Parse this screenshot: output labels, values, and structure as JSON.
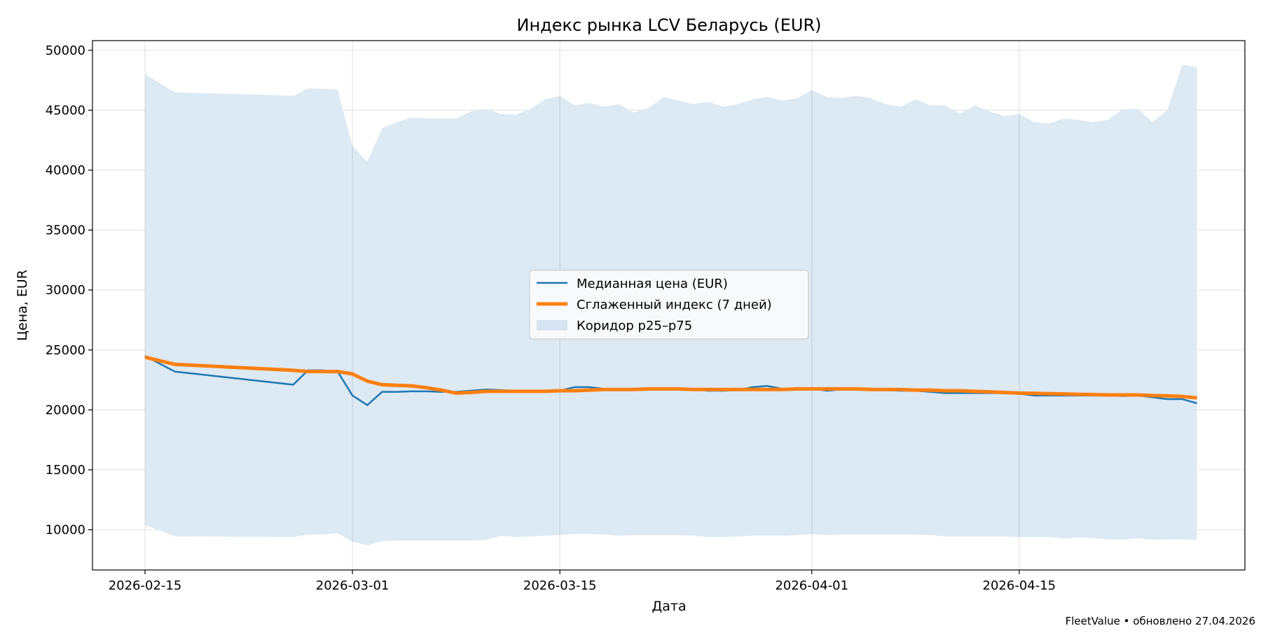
{
  "chart_data": {
    "type": "line",
    "title": "Индекс рынка LCV Беларусь (EUR)",
    "xlabel": "Дата",
    "ylabel": "Цена, EUR",
    "ylim": [
      6644,
      50805
    ],
    "xlim": [
      "2026-02-11",
      "2026-04-30"
    ],
    "grid": true,
    "legend_placement": "center",
    "x_ticks": [
      "2026-02-15",
      "2026-03-01",
      "2026-03-15",
      "2026-04-01",
      "2026-04-15"
    ],
    "y_ticks": [
      10000,
      15000,
      20000,
      25000,
      30000,
      35000,
      40000,
      45000,
      50000
    ],
    "legend": [
      "Медианная цена (EUR)",
      "Сглаженный индекс (7 дней)",
      "Коридор p25–p75"
    ],
    "colors": {
      "median": "#1f77b4",
      "smoothed": "#ff7f0e",
      "band": "#dde9f3"
    },
    "x": [
      "2026-02-15",
      "2026-02-17",
      "2026-02-25",
      "2026-02-26",
      "2026-02-27",
      "2026-02-28",
      "2026-03-01",
      "2026-03-02",
      "2026-03-03",
      "2026-03-04",
      "2026-03-05",
      "2026-03-06",
      "2026-03-07",
      "2026-03-08",
      "2026-03-09",
      "2026-03-10",
      "2026-03-11",
      "2026-03-12",
      "2026-03-13",
      "2026-03-14",
      "2026-03-15",
      "2026-03-16",
      "2026-03-17",
      "2026-03-18",
      "2026-03-19",
      "2026-03-20",
      "2026-03-21",
      "2026-03-22",
      "2026-03-23",
      "2026-03-24",
      "2026-03-25",
      "2026-03-26",
      "2026-03-27",
      "2026-03-28",
      "2026-03-29",
      "2026-03-30",
      "2026-03-31",
      "2026-04-01",
      "2026-04-02",
      "2026-04-03",
      "2026-04-04",
      "2026-04-05",
      "2026-04-06",
      "2026-04-07",
      "2026-04-08",
      "2026-04-09",
      "2026-04-10",
      "2026-04-11",
      "2026-04-12",
      "2026-04-13",
      "2026-04-14",
      "2026-04-15",
      "2026-04-16",
      "2026-04-17",
      "2026-04-18",
      "2026-04-19",
      "2026-04-20",
      "2026-04-21",
      "2026-04-22",
      "2026-04-23",
      "2026-04-24",
      "2026-04-25",
      "2026-04-26",
      "2026-04-27"
    ],
    "series": [
      {
        "name": "Медианная цена (EUR)",
        "values": [
          24500,
          23200,
          22100,
          23300,
          23300,
          23200,
          21200,
          20400,
          21500,
          21500,
          21550,
          21550,
          21500,
          21500,
          21600,
          21700,
          21650,
          21600,
          21600,
          21600,
          21600,
          21900,
          21900,
          21750,
          21700,
          21700,
          21700,
          21700,
          21700,
          21700,
          21600,
          21600,
          21650,
          21900,
          22000,
          21750,
          21750,
          21800,
          21600,
          21700,
          21700,
          21700,
          21650,
          21600,
          21600,
          21500,
          21400,
          21400,
          21400,
          21400,
          21400,
          21350,
          21200,
          21200,
          21200,
          21200,
          21200,
          21200,
          21150,
          21200,
          21050,
          20900,
          20900,
          20550
        ]
      },
      {
        "name": "Сглаженный индекс (7 дней)",
        "values": [
          24400,
          23800,
          23300,
          23200,
          23200,
          23200,
          23000,
          22400,
          22100,
          22050,
          22000,
          21850,
          21650,
          21400,
          21450,
          21550,
          21550,
          21550,
          21550,
          21550,
          21600,
          21600,
          21650,
          21700,
          21700,
          21700,
          21750,
          21750,
          21750,
          21700,
          21700,
          21700,
          21700,
          21700,
          21700,
          21700,
          21750,
          21750,
          21750,
          21750,
          21750,
          21700,
          21700,
          21700,
          21650,
          21650,
          21600,
          21600,
          21550,
          21500,
          21450,
          21400,
          21380,
          21350,
          21330,
          21300,
          21280,
          21250,
          21250,
          21250,
          21200,
          21170,
          21120,
          21000
        ]
      },
      {
        "name": "Коридор p25–p75",
        "type": "band",
        "upper": [
          48000,
          46500,
          46200,
          46800,
          46800,
          46700,
          42000,
          40700,
          43500,
          44000,
          44400,
          44300,
          44300,
          44300,
          44900,
          45100,
          44700,
          44600,
          45100,
          45900,
          46200,
          45400,
          45600,
          45300,
          45500,
          44800,
          45200,
          46100,
          45800,
          45500,
          45700,
          45300,
          45500,
          45900,
          46100,
          45800,
          46000,
          46700,
          46100,
          46000,
          46200,
          46000,
          45500,
          45300,
          45900,
          45400,
          45400,
          44700,
          45400,
          44900,
          44500,
          44700,
          44000,
          43900,
          44300,
          44200,
          44000,
          44200,
          45100,
          45100,
          44000,
          45000,
          48800,
          48600
        ],
        "lower": [
          10400,
          9450,
          9400,
          9600,
          9600,
          9700,
          9000,
          8700,
          9050,
          9100,
          9100,
          9100,
          9100,
          9100,
          9100,
          9150,
          9500,
          9400,
          9450,
          9500,
          9550,
          9650,
          9650,
          9600,
          9500,
          9550,
          9550,
          9550,
          9550,
          9500,
          9400,
          9400,
          9450,
          9500,
          9500,
          9500,
          9550,
          9650,
          9550,
          9600,
          9600,
          9600,
          9600,
          9600,
          9600,
          9550,
          9450,
          9450,
          9450,
          9450,
          9450,
          9400,
          9400,
          9400,
          9250,
          9350,
          9300,
          9200,
          9150,
          9300,
          9150,
          9200,
          9200,
          9150
        ]
      }
    ]
  },
  "footer": "FleetValue • обновлено 27.04.2026"
}
